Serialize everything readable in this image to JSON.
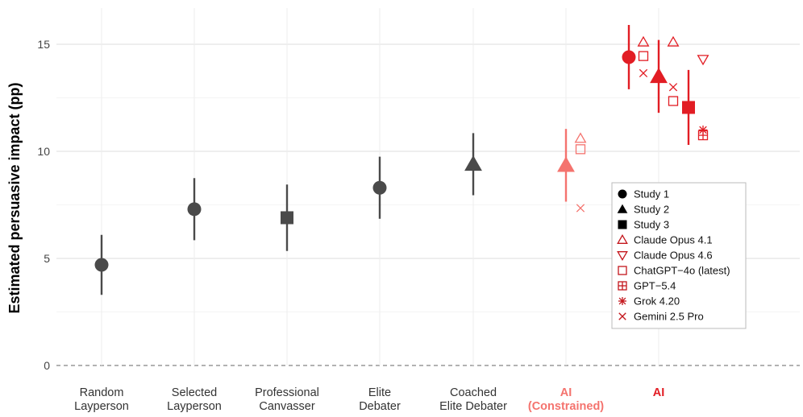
{
  "chart_data": {
    "type": "scatter",
    "ylabel": "Estimated persuasive impact (pp)",
    "ylim": [
      0,
      16
    ],
    "yticks": [
      0,
      5,
      10,
      15
    ],
    "grid": true,
    "reference_line": 0,
    "legend_position": "right",
    "categories": [
      {
        "line1": "Random",
        "line2": "Layperson",
        "color": "#333333"
      },
      {
        "line1": "Selected",
        "line2": "Layperson",
        "color": "#333333"
      },
      {
        "line1": "Professional",
        "line2": "Canvasser",
        "color": "#333333"
      },
      {
        "line1": "Elite",
        "line2": "Debater",
        "color": "#333333"
      },
      {
        "line1": "Coached",
        "line2": "Elite Debater",
        "color": "#333333"
      },
      {
        "line1": "AI",
        "line2": "(Constrained)",
        "color": "#f4736e",
        "bold": true
      },
      {
        "line1": "AI",
        "line2": "",
        "color": "#e21d24",
        "bold": true
      }
    ],
    "estimates": [
      {
        "category": 0,
        "study": "Study 1",
        "value": 4.7,
        "ci": [
          3.3,
          6.1
        ],
        "color": "#4a4a4a"
      },
      {
        "category": 1,
        "study": "Study 1",
        "value": 7.3,
        "ci": [
          5.85,
          8.75
        ],
        "color": "#4a4a4a"
      },
      {
        "category": 2,
        "study": "Study 3",
        "value": 6.9,
        "ci": [
          5.35,
          8.45
        ],
        "color": "#4a4a4a"
      },
      {
        "category": 3,
        "study": "Study 1",
        "value": 8.3,
        "ci": [
          6.85,
          9.75
        ],
        "color": "#4a4a4a"
      },
      {
        "category": 4,
        "study": "Study 2",
        "value": 9.4,
        "ci": [
          7.95,
          10.85
        ],
        "color": "#4a4a4a"
      },
      {
        "category": 5,
        "study": "Study 2",
        "value": 9.35,
        "ci": [
          7.65,
          11.05
        ],
        "color": "#f4736e"
      },
      {
        "category": 6,
        "study": "Study 1",
        "value": 14.4,
        "ci": [
          12.9,
          15.9
        ],
        "color": "#e21d24"
      },
      {
        "category": 6,
        "study": "Study 2",
        "value": 13.5,
        "ci": [
          11.8,
          15.2
        ],
        "color": "#e21d24"
      },
      {
        "category": 6,
        "study": "Study 3",
        "value": 12.05,
        "ci": [
          10.3,
          13.8
        ],
        "color": "#e21d24"
      }
    ],
    "models": [
      {
        "category": 5,
        "study": "Study 2",
        "model": "Claude Opus 4.1",
        "value": 10.6,
        "color": "#f4736e"
      },
      {
        "category": 5,
        "study": "Study 2",
        "model": "ChatGPT−4o (latest)",
        "value": 10.1,
        "color": "#f4736e"
      },
      {
        "category": 5,
        "study": "Study 2",
        "model": "Gemini 2.5 Pro",
        "value": 7.35,
        "color": "#f4736e"
      },
      {
        "category": 6,
        "study": "Study 1",
        "model": "Claude Opus 4.1",
        "value": 15.1,
        "color": "#e21d24"
      },
      {
        "category": 6,
        "study": "Study 1",
        "model": "ChatGPT−4o (latest)",
        "value": 14.45,
        "color": "#e21d24"
      },
      {
        "category": 6,
        "study": "Study 1",
        "model": "Gemini 2.5 Pro",
        "value": 13.65,
        "color": "#e21d24"
      },
      {
        "category": 6,
        "study": "Study 2",
        "model": "Claude Opus 4.1",
        "value": 15.1,
        "color": "#e21d24"
      },
      {
        "category": 6,
        "study": "Study 2",
        "model": "Gemini 2.5 Pro",
        "value": 13.0,
        "color": "#e21d24"
      },
      {
        "category": 6,
        "study": "Study 2",
        "model": "ChatGPT−4o (latest)",
        "value": 12.35,
        "color": "#e21d24"
      },
      {
        "category": 6,
        "study": "Study 3",
        "model": "Claude Opus 4.6",
        "value": 14.3,
        "color": "#e21d24"
      },
      {
        "category": 6,
        "study": "Study 3",
        "model": "Grok 4.20",
        "value": 11.0,
        "color": "#e21d24"
      },
      {
        "category": 6,
        "study": "Study 3",
        "model": "GPT−5.4",
        "value": 10.75,
        "color": "#e21d24"
      }
    ],
    "legend": [
      {
        "label": "Study 1",
        "shape": "circle",
        "filled": true,
        "color": "#000000"
      },
      {
        "label": "Study 2",
        "shape": "triangle-up",
        "filled": true,
        "color": "#000000"
      },
      {
        "label": "Study 3",
        "shape": "square",
        "filled": true,
        "color": "#000000"
      },
      {
        "label": "Claude Opus 4.1",
        "shape": "triangle-up",
        "filled": false,
        "color": "#c4161c"
      },
      {
        "label": "Claude Opus 4.6",
        "shape": "triangle-down",
        "filled": false,
        "color": "#c4161c"
      },
      {
        "label": "ChatGPT−4o (latest)",
        "shape": "square",
        "filled": false,
        "color": "#c4161c"
      },
      {
        "label": "GPT−5.4",
        "shape": "boxplus",
        "filled": false,
        "color": "#c4161c"
      },
      {
        "label": "Grok 4.20",
        "shape": "asterisk",
        "filled": false,
        "color": "#c4161c"
      },
      {
        "label": "Gemini 2.5 Pro",
        "shape": "cross",
        "filled": false,
        "color": "#c4161c"
      }
    ]
  }
}
